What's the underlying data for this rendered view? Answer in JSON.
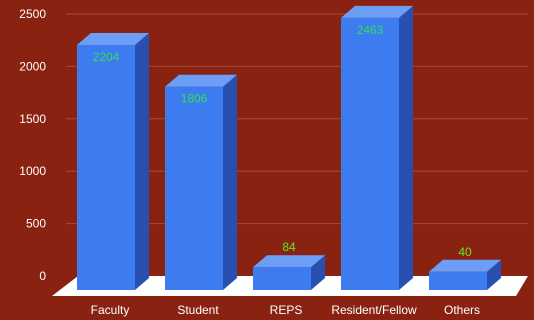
{
  "chart_data": {
    "type": "bar",
    "style": "3d-column",
    "categories": [
      "Faculty",
      "Student",
      "REPS",
      "Resident/Fellow",
      "Others"
    ],
    "values": [
      2204,
      1806,
      84,
      2463,
      40
    ],
    "data_labels": [
      "2204",
      "1806",
      "84",
      "2463",
      "40"
    ],
    "y_ticks": [
      "0",
      "500",
      "1000",
      "1500",
      "2000",
      "2500"
    ],
    "ylim": [
      0,
      2500
    ],
    "grid": true,
    "title": "",
    "xlabel": "",
    "ylabel": "",
    "colors": {
      "background": "#8a2211",
      "bar_front": "#3d7cf0",
      "bar_side": "#2750b0",
      "bar_top": "#6d9ef6",
      "floor": "#ffffff",
      "gridline": "#a84a3a",
      "label_inside": "#33dd55",
      "label_outside": "#55ee22"
    }
  }
}
